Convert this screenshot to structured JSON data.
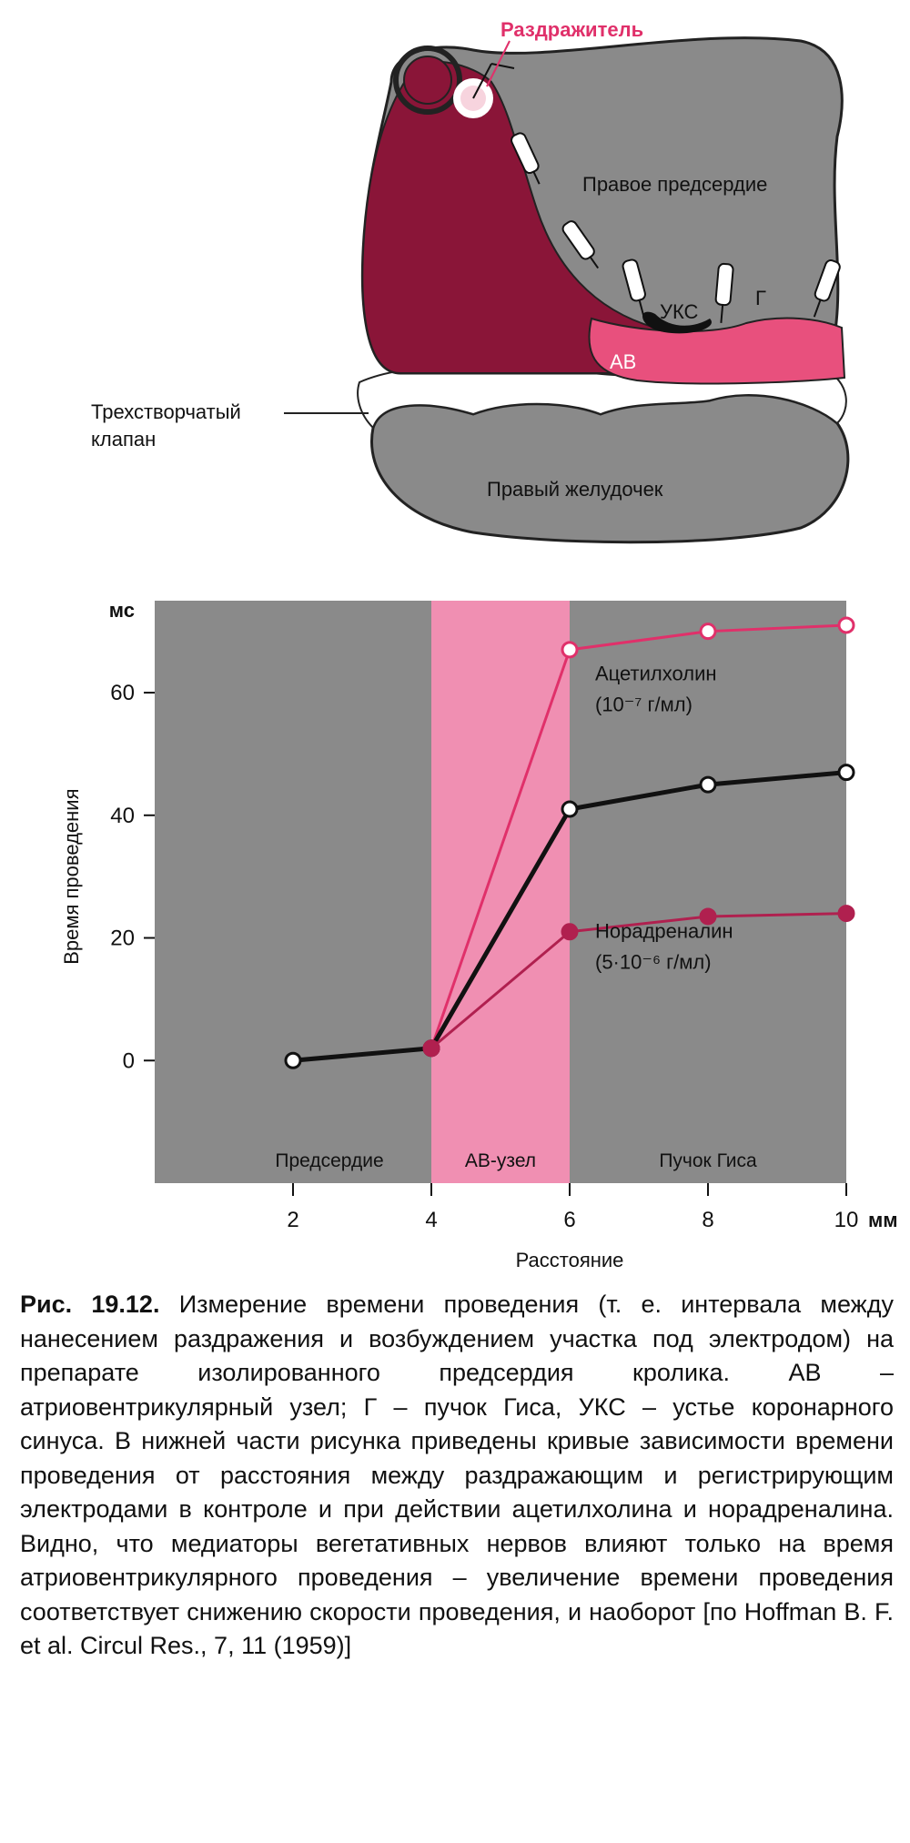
{
  "diagram": {
    "stimulus_label": "Раздражитель",
    "right_atrium_label": "Правое предсердие",
    "coronary_sinus_label": "УКС",
    "his_bundle_label": "Г",
    "av_label": "АВ",
    "tricuspid_label_line1": "Трехстворчатый",
    "tricuspid_label_line2": "клапан",
    "right_ventricle_label": "Правый желудочек",
    "colors": {
      "atrium_dark": "#8a1538",
      "tissue_gray": "#8a8a8a",
      "av_pink": "#e8507d",
      "stimulus": "#e0306a"
    }
  },
  "chart_data": {
    "type": "line",
    "ylabel": "Время проведения",
    "y_unit": "мс",
    "x_title": "Расстояние",
    "x_unit": "мм",
    "xlim": [
      0,
      10
    ],
    "ylim": [
      -20,
      75
    ],
    "x_ticks": [
      2,
      4,
      6,
      8,
      10
    ],
    "y_ticks": [
      0,
      20,
      40,
      60
    ],
    "regions": [
      {
        "label": "Предсердие",
        "x0": 0,
        "x1": 4,
        "color": "#8a8a8a"
      },
      {
        "label": "АВ-узел",
        "x0": 4,
        "x1": 6,
        "color": "#f08fb2"
      },
      {
        "label": "Пучок Гиса",
        "x0": 6,
        "x1": 10,
        "color": "#8a8a8a"
      }
    ],
    "series": [
      {
        "label_line1": "Ацетилхолин",
        "label_line2": "(10⁻⁷ г/мл)",
        "color": "#e0306a",
        "marker": "open",
        "x": [
          4,
          6,
          8,
          10
        ],
        "y": [
          2,
          67,
          70,
          71
        ]
      },
      {
        "color": "#111111",
        "marker": "open",
        "x": [
          2,
          4,
          6,
          8,
          10
        ],
        "y": [
          0,
          2,
          41,
          45,
          47
        ]
      },
      {
        "label_line1": "Норадреналин",
        "label_line2": "(5·10⁻⁶ г/мл)",
        "color": "#b0204f",
        "marker": "filled",
        "x": [
          4,
          6,
          8,
          10
        ],
        "y": [
          2,
          21,
          23.5,
          24
        ]
      }
    ]
  },
  "caption": {
    "fig_label": "Рис. 19.12.",
    "text": "Измерение времени проведения (т. е. интервала между нанесением раздражения и возбуждением участка под электродом) на препарате изолированного предсердия кролика. АВ – атриовентрикулярный узел; Г – пучок Гиса, УКС – устье коронарного синуса. В нижней части рисунка приведены кривые зависимости времени проведения от расстояния между раздражающим и регистрирующим электродами в контроле и при действии ацетилхолина и норадреналина. Видно, что медиаторы вегетативных нервов влияют только на время атриовентрикулярного проведения – увеличение времени проведения соответствует снижению скорости проведения, и наоборот [по Hoffman B. F. et al. Circul Res., 7, 11 (1959)]"
  }
}
